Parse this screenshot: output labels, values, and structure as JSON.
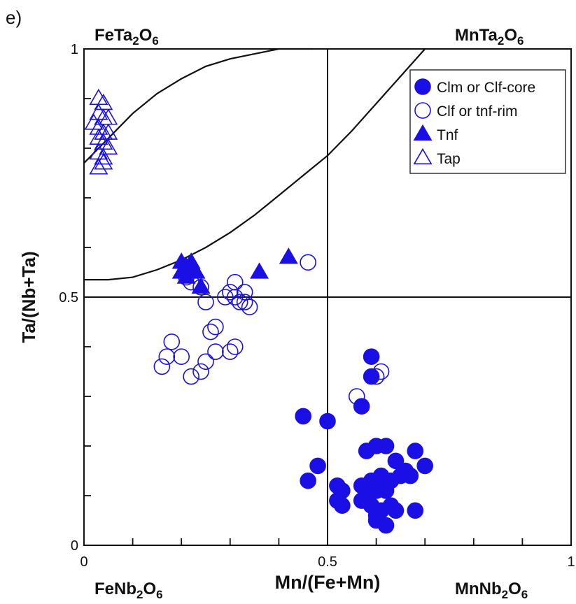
{
  "chart_data": {
    "type": "scatter",
    "panel_label": "e)",
    "xlabel": "Mn/(Fe+Mn)",
    "ylabel": "Ta/(Nb+Ta)",
    "xlim": [
      0,
      1
    ],
    "ylim": [
      0,
      1
    ],
    "x_ticks": [
      "0",
      "0.5",
      "1"
    ],
    "y_ticks": [
      "0",
      "0.5",
      "1"
    ],
    "corner_labels": {
      "top_left": "FeTa2O6",
      "top_right": "MnTa2O6",
      "bottom_left": "FeNb2O6",
      "bottom_right": "MnNb2O6"
    },
    "grid": false,
    "divider_lines": [
      0.5
    ],
    "legend_placement": "top-right",
    "series": [
      {
        "name": "Clm or Clf-core",
        "marker": "filled-circle",
        "color": "#1a10e6",
        "points": [
          [
            0.45,
            0.26
          ],
          [
            0.5,
            0.25
          ],
          [
            0.48,
            0.16
          ],
          [
            0.46,
            0.13
          ],
          [
            0.52,
            0.12
          ],
          [
            0.53,
            0.11
          ],
          [
            0.52,
            0.09
          ],
          [
            0.53,
            0.08
          ],
          [
            0.57,
            0.28
          ],
          [
            0.59,
            0.38
          ],
          [
            0.59,
            0.34
          ],
          [
            0.58,
            0.19
          ],
          [
            0.6,
            0.2
          ],
          [
            0.62,
            0.2
          ],
          [
            0.64,
            0.17
          ],
          [
            0.66,
            0.15
          ],
          [
            0.68,
            0.19
          ],
          [
            0.7,
            0.16
          ],
          [
            0.59,
            0.13
          ],
          [
            0.61,
            0.14
          ],
          [
            0.63,
            0.13
          ],
          [
            0.57,
            0.12
          ],
          [
            0.58,
            0.1
          ],
          [
            0.6,
            0.11
          ],
          [
            0.62,
            0.11
          ],
          [
            0.65,
            0.14
          ],
          [
            0.67,
            0.14
          ],
          [
            0.57,
            0.09
          ],
          [
            0.59,
            0.08
          ],
          [
            0.61,
            0.07
          ],
          [
            0.63,
            0.08
          ],
          [
            0.64,
            0.07
          ],
          [
            0.68,
            0.07
          ],
          [
            0.6,
            0.05
          ],
          [
            0.62,
            0.04
          ],
          [
            0.6,
            0.06
          ]
        ]
      },
      {
        "name": "Clf or tnf-rim",
        "marker": "open-circle",
        "color": "#1a10e6",
        "points": [
          [
            0.46,
            0.57
          ],
          [
            0.21,
            0.54
          ],
          [
            0.22,
            0.53
          ],
          [
            0.24,
            0.52
          ],
          [
            0.25,
            0.49
          ],
          [
            0.29,
            0.5
          ],
          [
            0.3,
            0.51
          ],
          [
            0.31,
            0.5
          ],
          [
            0.32,
            0.49
          ],
          [
            0.31,
            0.53
          ],
          [
            0.33,
            0.51
          ],
          [
            0.33,
            0.49
          ],
          [
            0.34,
            0.48
          ],
          [
            0.26,
            0.43
          ],
          [
            0.27,
            0.44
          ],
          [
            0.18,
            0.41
          ],
          [
            0.17,
            0.38
          ],
          [
            0.16,
            0.36
          ],
          [
            0.2,
            0.38
          ],
          [
            0.22,
            0.34
          ],
          [
            0.24,
            0.35
          ],
          [
            0.25,
            0.37
          ],
          [
            0.27,
            0.39
          ],
          [
            0.3,
            0.39
          ],
          [
            0.31,
            0.4
          ],
          [
            0.56,
            0.3
          ],
          [
            0.61,
            0.35
          ],
          [
            0.6,
            0.34
          ]
        ]
      },
      {
        "name": "Tnf",
        "marker": "filled-triangle",
        "color": "#1a10e6",
        "points": [
          [
            0.2,
            0.57
          ],
          [
            0.21,
            0.56
          ],
          [
            0.22,
            0.57
          ],
          [
            0.2,
            0.55
          ],
          [
            0.21,
            0.54
          ],
          [
            0.23,
            0.55
          ],
          [
            0.24,
            0.52
          ],
          [
            0.36,
            0.55
          ],
          [
            0.42,
            0.58
          ]
        ]
      },
      {
        "name": "Tap",
        "marker": "open-triangle",
        "color": "#1a10e6",
        "points": [
          [
            0.03,
            0.9
          ],
          [
            0.04,
            0.89
          ],
          [
            0.03,
            0.87
          ],
          [
            0.04,
            0.86
          ],
          [
            0.02,
            0.85
          ],
          [
            0.03,
            0.84
          ],
          [
            0.04,
            0.83
          ],
          [
            0.03,
            0.82
          ],
          [
            0.04,
            0.81
          ],
          [
            0.03,
            0.79
          ],
          [
            0.04,
            0.78
          ],
          [
            0.05,
            0.8
          ],
          [
            0.05,
            0.83
          ],
          [
            0.05,
            0.86
          ],
          [
            0.03,
            0.76
          ],
          [
            0.04,
            0.77
          ]
        ]
      }
    ],
    "curves": [
      {
        "name": "",
        "points": [
          [
            0,
            0.77
          ],
          [
            0.05,
            0.82
          ],
          [
            0.1,
            0.87
          ],
          [
            0.15,
            0.91
          ],
          [
            0.2,
            0.94
          ],
          [
            0.25,
            0.965
          ],
          [
            0.3,
            0.98
          ],
          [
            0.35,
            0.99
          ],
          [
            0.4,
            1.0
          ],
          [
            0.47,
            1.0
          ]
        ]
      },
      {
        "name": "",
        "points": [
          [
            0,
            0.535
          ],
          [
            0.05,
            0.535
          ],
          [
            0.1,
            0.54
          ],
          [
            0.15,
            0.555
          ],
          [
            0.2,
            0.575
          ],
          [
            0.25,
            0.6
          ],
          [
            0.3,
            0.63
          ],
          [
            0.35,
            0.665
          ],
          [
            0.4,
            0.705
          ],
          [
            0.45,
            0.745
          ],
          [
            0.5,
            0.785
          ],
          [
            0.55,
            0.835
          ],
          [
            0.6,
            0.89
          ],
          [
            0.65,
            0.945
          ],
          [
            0.7,
            1.0
          ]
        ]
      }
    ]
  }
}
